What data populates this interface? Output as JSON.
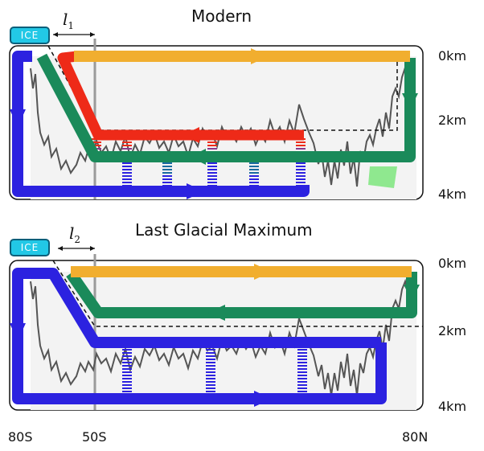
{
  "panels": [
    {
      "title": "Modern",
      "ice_label": "ICE",
      "ell": "l",
      "ell_sub": "1"
    },
    {
      "title": "Last Glacial Maximum",
      "ice_label": "ICE",
      "ell": "l",
      "ell_sub": "2"
    }
  ],
  "depth_labels": [
    "0km",
    "2km",
    "4km"
  ],
  "lat_labels": [
    "80S",
    "50S",
    "80N"
  ],
  "colors": {
    "upper_cell": "#f1ae2f",
    "nadw": "#1a8a5a",
    "aabw": "#2c22e0",
    "aaiw": "#ee2a18",
    "vertical_line": "#9a9a9a",
    "topography": "#555555",
    "ice_fill": "#22c8e6",
    "green_patch": "#8fe88f"
  }
}
